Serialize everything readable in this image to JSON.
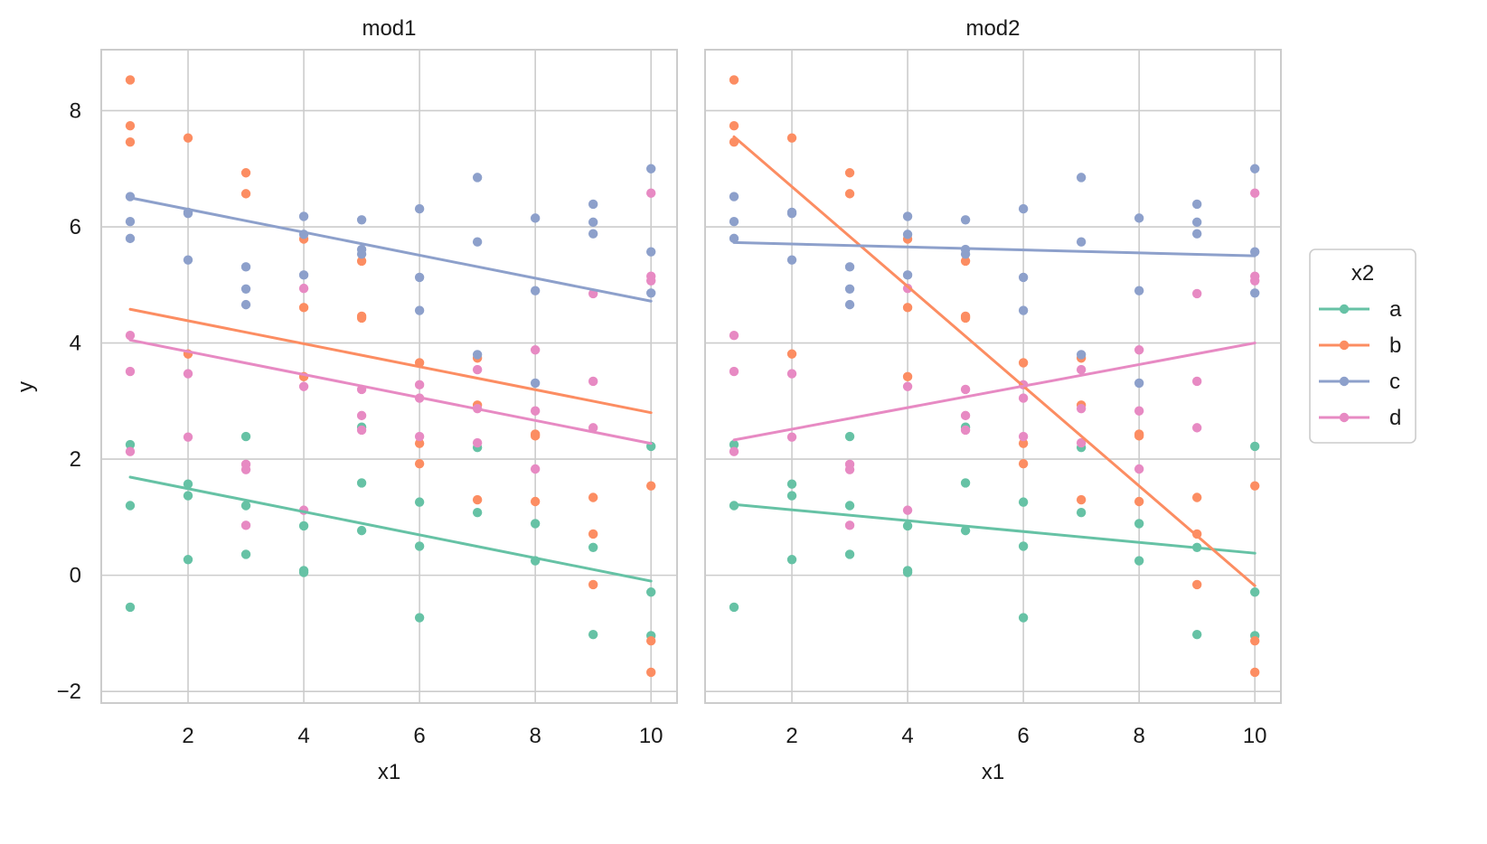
{
  "chart_data": {
    "type": "scatter",
    "xlabel": "x1",
    "ylabel": "y",
    "xlim": [
      0.5,
      10.45
    ],
    "ylim": [
      -2.2,
      9.05
    ],
    "xticks": [
      2,
      4,
      6,
      8,
      10
    ],
    "yticks": [
      -2,
      0,
      2,
      4,
      6,
      8
    ],
    "grid": true,
    "legend": {
      "title": "x2",
      "placement": "right",
      "entries": [
        "a",
        "b",
        "c",
        "d"
      ]
    },
    "colors": {
      "a": "#66c2a5",
      "b": "#fc8d62",
      "c": "#8da0cb",
      "d": "#e78ac3"
    },
    "points": {
      "a": [
        [
          1,
          2.25
        ],
        [
          1,
          1.2
        ],
        [
          1,
          -0.55
        ],
        [
          2,
          1.57
        ],
        [
          2,
          1.37
        ],
        [
          2,
          0.27
        ],
        [
          3,
          2.39
        ],
        [
          3,
          1.2
        ],
        [
          3,
          0.36
        ],
        [
          4,
          0.85
        ],
        [
          4,
          0.08
        ],
        [
          4,
          0.05
        ],
        [
          5,
          2.55
        ],
        [
          5,
          1.59
        ],
        [
          5,
          0.77
        ],
        [
          6,
          1.26
        ],
        [
          6,
          0.5
        ],
        [
          6,
          -0.73
        ],
        [
          7,
          2.2
        ],
        [
          7,
          1.08
        ],
        [
          8,
          0.89
        ],
        [
          8,
          0.25
        ],
        [
          9,
          0.48
        ],
        [
          9,
          -1.02
        ],
        [
          10,
          2.22
        ],
        [
          10,
          -0.29
        ],
        [
          10,
          -1.04
        ]
      ],
      "b": [
        [
          1,
          8.53
        ],
        [
          1,
          7.74
        ],
        [
          1,
          7.46
        ],
        [
          2,
          7.53
        ],
        [
          2,
          3.81
        ],
        [
          3,
          6.93
        ],
        [
          3,
          6.57
        ],
        [
          4,
          5.79
        ],
        [
          4,
          4.61
        ],
        [
          4,
          3.42
        ],
        [
          5,
          5.41
        ],
        [
          5,
          4.46
        ],
        [
          5,
          4.43
        ],
        [
          6,
          3.66
        ],
        [
          6,
          2.27
        ],
        [
          6,
          1.92
        ],
        [
          7,
          3.74
        ],
        [
          7,
          2.93
        ],
        [
          7,
          1.3
        ],
        [
          8,
          2.43
        ],
        [
          8,
          2.4
        ],
        [
          8,
          1.27
        ],
        [
          9,
          1.34
        ],
        [
          9,
          0.71
        ],
        [
          9,
          -0.16
        ],
        [
          10,
          1.54
        ],
        [
          10,
          -1.13
        ],
        [
          10,
          -1.67
        ]
      ],
      "c": [
        [
          1,
          6.52
        ],
        [
          1,
          6.09
        ],
        [
          1,
          5.8
        ],
        [
          2,
          6.25
        ],
        [
          2,
          6.23
        ],
        [
          2,
          5.43
        ],
        [
          3,
          5.31
        ],
        [
          3,
          4.93
        ],
        [
          3,
          4.66
        ],
        [
          4,
          6.18
        ],
        [
          4,
          5.87
        ],
        [
          4,
          5.17
        ],
        [
          5,
          6.12
        ],
        [
          5,
          5.61
        ],
        [
          5,
          5.53
        ],
        [
          6,
          6.31
        ],
        [
          6,
          5.13
        ],
        [
          6,
          4.56
        ],
        [
          7,
          6.85
        ],
        [
          7,
          5.74
        ],
        [
          7,
          3.8
        ],
        [
          8,
          6.15
        ],
        [
          8,
          4.9
        ],
        [
          8,
          3.31
        ],
        [
          9,
          6.39
        ],
        [
          9,
          6.08
        ],
        [
          9,
          5.88
        ],
        [
          10,
          7.0
        ],
        [
          10,
          5.57
        ],
        [
          10,
          4.86
        ]
      ],
      "d": [
        [
          1,
          4.13
        ],
        [
          1,
          3.51
        ],
        [
          1,
          2.13
        ],
        [
          2,
          3.47
        ],
        [
          2,
          2.38
        ],
        [
          3,
          1.91
        ],
        [
          3,
          1.82
        ],
        [
          3,
          0.86
        ],
        [
          4,
          4.94
        ],
        [
          4,
          3.25
        ],
        [
          4,
          1.12
        ],
        [
          5,
          3.2
        ],
        [
          5,
          2.75
        ],
        [
          5,
          2.5
        ],
        [
          6,
          3.28
        ],
        [
          6,
          3.05
        ],
        [
          6,
          2.39
        ],
        [
          7,
          3.54
        ],
        [
          7,
          2.87
        ],
        [
          7,
          2.28
        ],
        [
          8,
          3.88
        ],
        [
          8,
          2.83
        ],
        [
          8,
          1.83
        ],
        [
          9,
          4.85
        ],
        [
          9,
          3.34
        ],
        [
          9,
          2.54
        ],
        [
          10,
          6.58
        ],
        [
          10,
          5.15
        ],
        [
          10,
          5.07
        ]
      ]
    },
    "panels": [
      {
        "title": "mod1",
        "lines": {
          "a": [
            [
              1,
              1.69
            ],
            [
              10,
              -0.1
            ]
          ],
          "b": [
            [
              1,
              4.58
            ],
            [
              10,
              2.8
            ]
          ],
          "c": [
            [
              1,
              6.5
            ],
            [
              10,
              4.72
            ]
          ],
          "d": [
            [
              1,
              4.05
            ],
            [
              10,
              2.27
            ]
          ]
        }
      },
      {
        "title": "mod2",
        "lines": {
          "a": [
            [
              1,
              1.22
            ],
            [
              10,
              0.38
            ]
          ],
          "b": [
            [
              1,
              7.55
            ],
            [
              10,
              -0.18
            ]
          ],
          "c": [
            [
              1,
              5.73
            ],
            [
              10,
              5.5
            ]
          ],
          "d": [
            [
              1,
              2.33
            ],
            [
              10,
              4.0
            ]
          ]
        }
      }
    ]
  }
}
